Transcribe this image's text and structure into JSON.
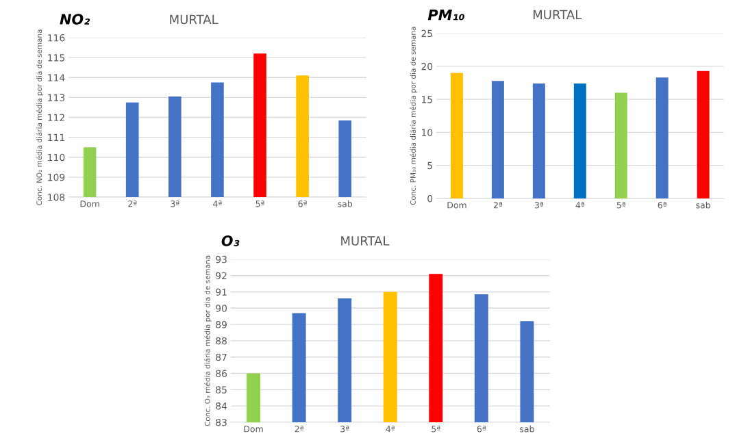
{
  "chart_data": [
    {
      "type": "bar",
      "title": "NO₂",
      "subtitle": "MURTAL",
      "ylabel": "Conc. NO₂ média diária média por dia de semana",
      "categories": [
        "Dom",
        "2ª",
        "3ª",
        "4ª",
        "5ª",
        "6ª",
        "sab"
      ],
      "values": [
        110.5,
        112.75,
        113.05,
        113.75,
        115.2,
        114.1,
        111.85
      ],
      "colors": [
        "#92d050",
        "#4472c4",
        "#4472c4",
        "#4472c4",
        "#ff0000",
        "#ffc000",
        "#4472c4"
      ],
      "ylim": [
        108,
        116
      ],
      "yticks": [
        108,
        109,
        110,
        111,
        112,
        113,
        114,
        115,
        116
      ],
      "grid": "y",
      "legend": false
    },
    {
      "type": "bar",
      "title": "PM₁₀",
      "subtitle": "MURTAL",
      "ylabel": "Conc. PM₁₀ média diária média por dia de semana",
      "categories": [
        "Dom",
        "2ª",
        "3ª",
        "4ª",
        "5ª",
        "6ª",
        "sab"
      ],
      "values": [
        19.0,
        17.8,
        17.4,
        17.4,
        16.0,
        18.3,
        19.3
      ],
      "colors": [
        "#ffc000",
        "#4472c4",
        "#4472c4",
        "#0070c0",
        "#92d050",
        "#4472c4",
        "#ff0000"
      ],
      "ylim": [
        0,
        25
      ],
      "yticks": [
        0,
        5,
        10,
        15,
        20,
        25
      ],
      "grid": "y",
      "legend": false
    },
    {
      "type": "bar",
      "title": "O₃",
      "subtitle": "MURTAL",
      "ylabel": "Conc. O₃ média diária média por dia de semana",
      "categories": [
        "Dom",
        "2ª",
        "3ª",
        "4ª",
        "5ª",
        "6ª",
        "sab"
      ],
      "values": [
        86.0,
        89.7,
        90.6,
        91.0,
        92.1,
        90.85,
        89.2
      ],
      "colors": [
        "#92d050",
        "#4472c4",
        "#4472c4",
        "#ffc000",
        "#ff0000",
        "#4472c4",
        "#4472c4"
      ],
      "ylim": [
        83,
        93
      ],
      "yticks": [
        83,
        84,
        85,
        86,
        87,
        88,
        89,
        90,
        91,
        92,
        93
      ],
      "grid": "y",
      "legend": false
    }
  ]
}
